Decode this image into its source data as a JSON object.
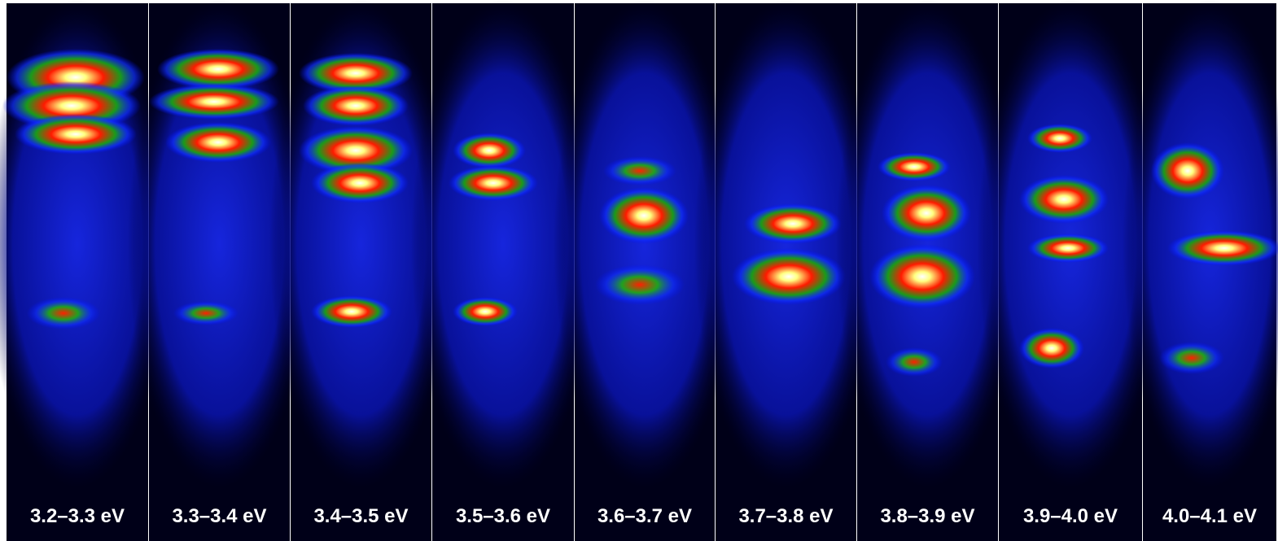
{
  "panels": [
    {
      "label": "3.2–3.3 eV"
    },
    {
      "label": "3.3–3.4 eV"
    },
    {
      "label": "3.4–3.5 eV"
    },
    {
      "label": "3.5–3.6 eV"
    },
    {
      "label": "3.6–3.7 eV"
    },
    {
      "label": "3.7–3.8 eV"
    },
    {
      "label": "3.8–3.9 eV"
    },
    {
      "label": "3.9–4.0 eV"
    },
    {
      "label": "4.0–4.1 eV"
    }
  ]
}
